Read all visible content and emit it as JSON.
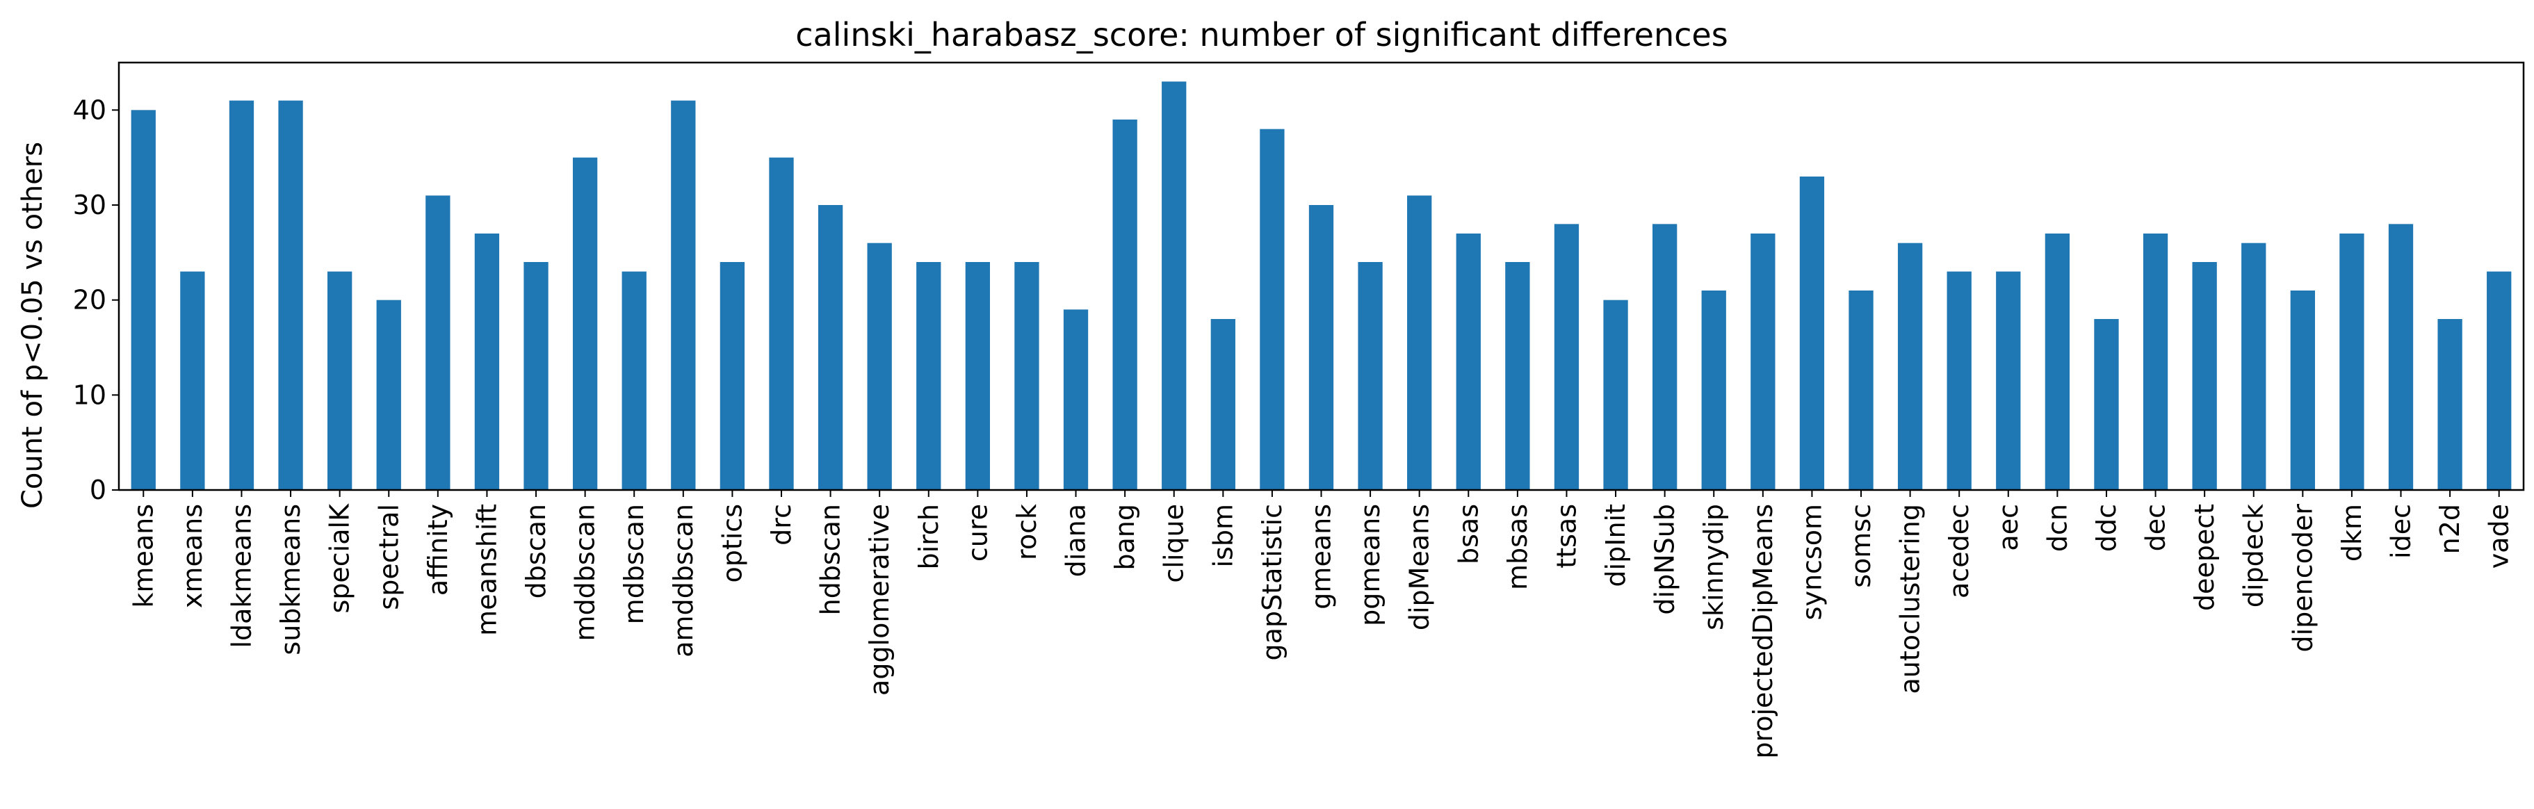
{
  "chart_data": {
    "type": "bar",
    "title": "calinski_harabasz_score: number of significant differences",
    "xlabel": "",
    "ylabel": "Count of p<0.05 vs others",
    "ylim": [
      0,
      45
    ],
    "yticks": [
      0,
      10,
      20,
      30,
      40
    ],
    "grid": false,
    "legend": "none",
    "bar_color": "#1f77b4",
    "categories": [
      "kmeans",
      "xmeans",
      "ldakmeans",
      "subkmeans",
      "specialK",
      "spectral",
      "affinity",
      "meanshift",
      "dbscan",
      "mddbscan",
      "mdbscan",
      "amddbscan",
      "optics",
      "drc",
      "hdbscan",
      "agglomerative",
      "birch",
      "cure",
      "rock",
      "diana",
      "bang",
      "clique",
      "isbm",
      "gapStatistic",
      "gmeans",
      "pgmeans",
      "dipMeans",
      "bsas",
      "mbsas",
      "ttsas",
      "dipInit",
      "dipNSub",
      "skinnydip",
      "projectedDipMeans",
      "syncsom",
      "somsc",
      "autoclustering",
      "acedec",
      "aec",
      "dcn",
      "ddc",
      "dec",
      "deepect",
      "dipdeck",
      "dipencoder",
      "dkm",
      "idec",
      "n2d",
      "vade"
    ],
    "values": [
      40,
      23,
      41,
      41,
      23,
      20,
      31,
      27,
      24,
      35,
      23,
      41,
      24,
      35,
      30,
      26,
      24,
      24,
      24,
      19,
      39,
      43,
      18,
      38,
      30,
      24,
      31,
      27,
      24,
      28,
      20,
      28,
      21,
      27,
      33,
      21,
      26,
      23,
      23,
      27,
      18,
      27,
      24,
      26,
      21,
      27,
      28,
      18,
      23
    ]
  }
}
